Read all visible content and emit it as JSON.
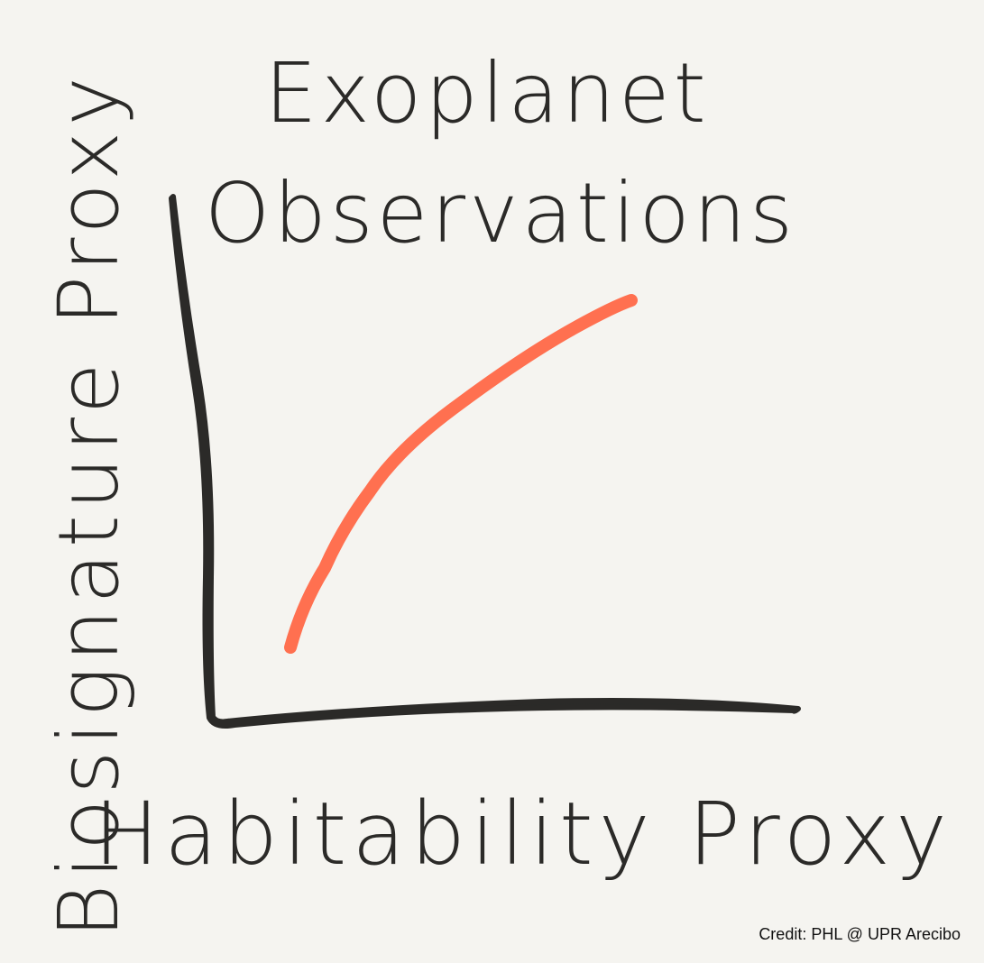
{
  "title": {
    "line1": "Exoplanet",
    "line2": "Observations"
  },
  "y_axis_label": "Biosignature Proxy",
  "x_axis_label": "Habitability Proxy",
  "credit": "Credit: PHL @ UPR Arecibo"
}
